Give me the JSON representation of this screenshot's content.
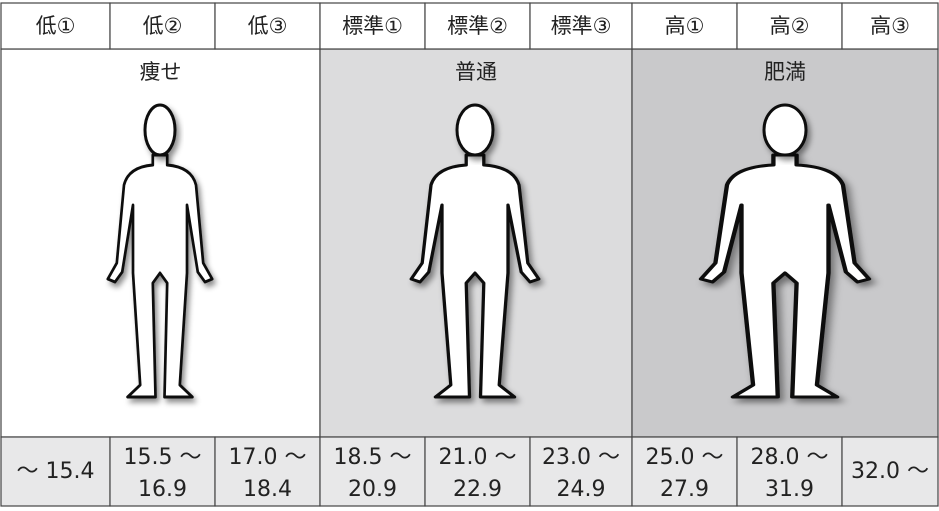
{
  "header": {
    "columns": [
      "低①",
      "低②",
      "低③",
      "標準①",
      "標準②",
      "標準③",
      "高①",
      "高②",
      "高③"
    ]
  },
  "groups": [
    {
      "label": "痩せ"
    },
    {
      "label": "普通"
    },
    {
      "label": "肥満"
    }
  ],
  "ranges": [
    [
      "～ 15.4"
    ],
    [
      "15.5 ～",
      "16.9"
    ],
    [
      "17.0 ～",
      "18.4"
    ],
    [
      "18.5 ～",
      "20.9"
    ],
    [
      "21.0 ～",
      "22.9"
    ],
    [
      "23.0 ～",
      "24.9"
    ],
    [
      "25.0 ～",
      "27.9"
    ],
    [
      "28.0 ～",
      "31.9"
    ],
    [
      "32.0 ～"
    ]
  ]
}
